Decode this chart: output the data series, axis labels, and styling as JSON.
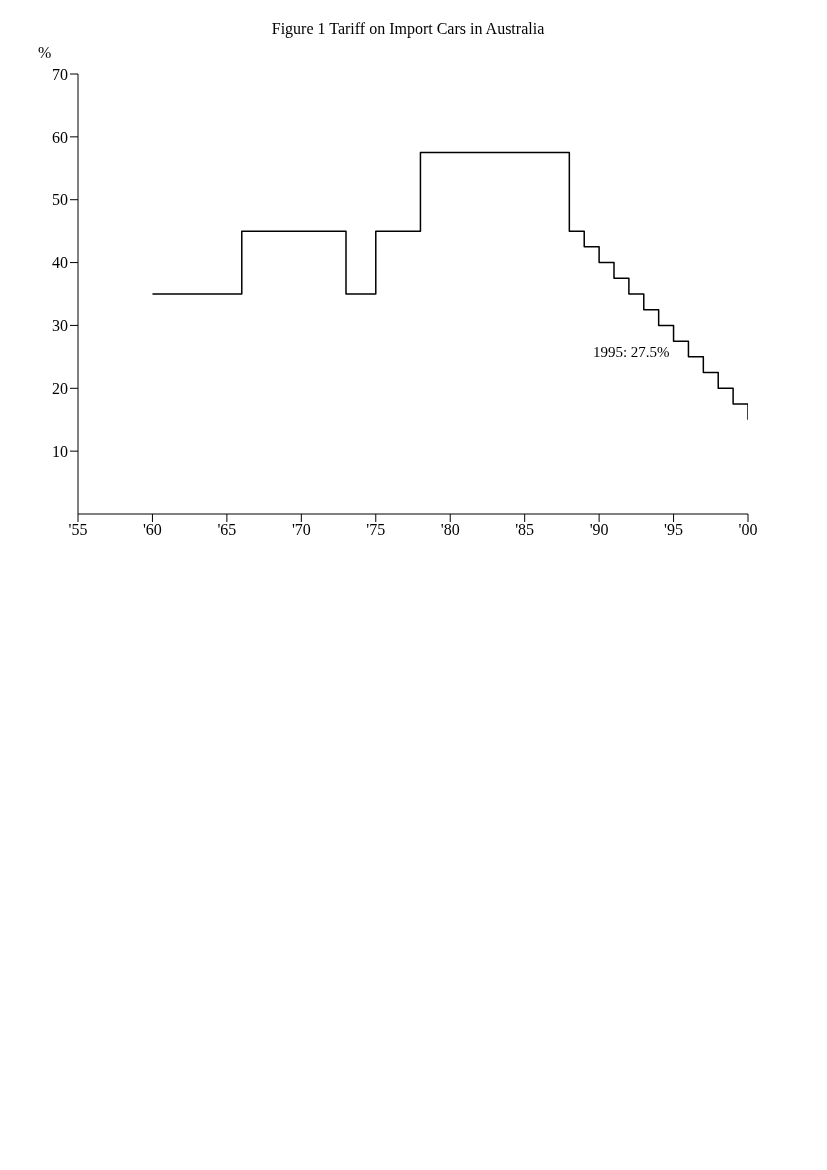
{
  "chart_data": {
    "type": "step",
    "title": "Figure 1  Tariff on Import Cars in Australia",
    "ylabel": "%",
    "annotations": [
      {
        "text": "1995: 27.5%",
        "x": 1995,
        "y": 27.5
      }
    ],
    "x": [
      1960,
      1966,
      1973,
      1975,
      1978,
      1988,
      1989,
      1990,
      1991,
      1992,
      1993,
      1994,
      1995,
      1996,
      1997,
      1998,
      1999,
      2000
    ],
    "series": [
      {
        "color": "#000000",
        "values": [
          35,
          45,
          35,
          45,
          57.5,
          45,
          42.5,
          40,
          37.5,
          35,
          32.5,
          30,
          27.5,
          25,
          22.5,
          20,
          17.5,
          15
        ]
      }
    ],
    "xlim": [
      1955,
      2000
    ],
    "xticks": [
      {
        "value": 1955,
        "label": "'55"
      },
      {
        "value": 1960,
        "label": "'60"
      },
      {
        "value": 1965,
        "label": "'65"
      },
      {
        "value": 1970,
        "label": "'70"
      },
      {
        "value": 1975,
        "label": "'75"
      },
      {
        "value": 1980,
        "label": "'80"
      },
      {
        "value": 1985,
        "label": "'85"
      },
      {
        "value": 1990,
        "label": "'90"
      },
      {
        "value": 1995,
        "label": "'95"
      },
      {
        "value": 2000,
        "label": "'00"
      }
    ],
    "ylim": [
      0,
      70
    ],
    "yticks": [
      10,
      20,
      30,
      40,
      50,
      60,
      70
    ],
    "grid": false,
    "legend": false,
    "marker": "none",
    "line_style": "solid"
  }
}
